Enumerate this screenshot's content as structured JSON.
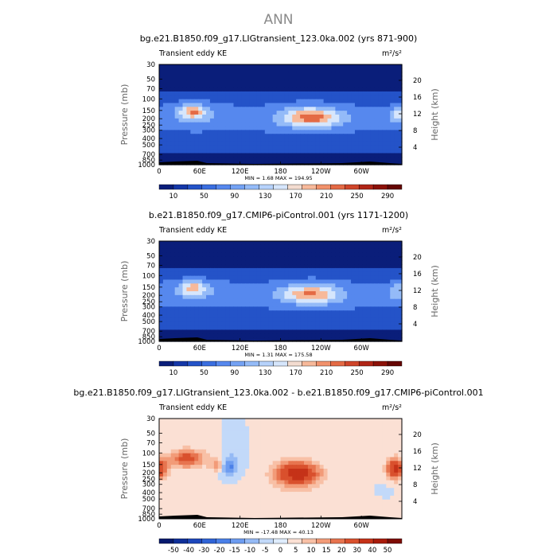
{
  "page_title": "ANN",
  "chart_data": [
    {
      "type": "heatmap",
      "title": "bg.e21.B1850.f09_g17.LIGtransient_123.0ka.002 (yrs 871-900)",
      "variable": "Transient eddy KE",
      "units": "m²/s²",
      "ylabel": "Pressure (mb)",
      "ylabel_right": "Height (km)",
      "y_scale": "log",
      "y_ticks": [
        "30",
        "50",
        "70",
        "100",
        "150",
        "200",
        "250",
        "300",
        "400",
        "500",
        "700",
        "850",
        "1000"
      ],
      "y_right_ticks": [
        "20",
        "16",
        "12",
        "8",
        "4"
      ],
      "x_ticks": [
        "0",
        "60E",
        "120E",
        "180",
        "120W",
        "60W"
      ],
      "stats_text": "MIN =    1.68   MAX = 194.95",
      "min": 1.68,
      "max": 194.95,
      "colorbar_ticks": [
        "10",
        "50",
        "90",
        "130",
        "170",
        "210",
        "250",
        "290"
      ],
      "colorbar_colors": [
        "#0a1e7a",
        "#1437a8",
        "#2453c8",
        "#3a6ee0",
        "#5688ee",
        "#74a2f4",
        "#94bbf8",
        "#b6d2fb",
        "#d6e6fc",
        "#f3dcd0",
        "#f7b99a",
        "#f1916b",
        "#e46a45",
        "#cf452a",
        "#b02516",
        "#8c1108",
        "#650603"
      ],
      "field": "eddyA"
    },
    {
      "type": "heatmap",
      "title": "b.e21.B1850.f09_g17.CMIP6-piControl.001 (yrs 1171-1200)",
      "variable": "Transient eddy KE",
      "units": "m²/s²",
      "ylabel": "Pressure (mb)",
      "ylabel_right": "Height (km)",
      "y_scale": "log",
      "y_ticks": [
        "30",
        "50",
        "70",
        "100",
        "150",
        "200",
        "250",
        "300",
        "400",
        "500",
        "700",
        "850",
        "1000"
      ],
      "y_right_ticks": [
        "20",
        "16",
        "12",
        "8",
        "4"
      ],
      "x_ticks": [
        "0",
        "60E",
        "120E",
        "180",
        "120W",
        "60W"
      ],
      "stats_text": "MIN =    1.31   MAX = 175.58",
      "min": 1.31,
      "max": 175.58,
      "colorbar_ticks": [
        "10",
        "50",
        "90",
        "130",
        "170",
        "210",
        "250",
        "290"
      ],
      "colorbar_colors": [
        "#0a1e7a",
        "#1437a8",
        "#2453c8",
        "#3a6ee0",
        "#5688ee",
        "#74a2f4",
        "#94bbf8",
        "#b6d2fb",
        "#d6e6fc",
        "#f3dcd0",
        "#f7b99a",
        "#f1916b",
        "#e46a45",
        "#cf452a",
        "#b02516",
        "#8c1108",
        "#650603"
      ],
      "field": "eddyB"
    },
    {
      "type": "heatmap",
      "title": "bg.e21.B1850.f09_g17.LIGtransient_123.0ka.002 - b.e21.B1850.f09_g17.CMIP6-piControl.001",
      "variable": "Transient eddy KE",
      "units": "m²/s²",
      "ylabel": "Pressure (mb)",
      "ylabel_right": "Height (km)",
      "y_scale": "log",
      "y_ticks": [
        "30",
        "50",
        "70",
        "100",
        "150",
        "200",
        "250",
        "300",
        "400",
        "500",
        "700",
        "850",
        "1000"
      ],
      "y_right_ticks": [
        "20",
        "16",
        "12",
        "8",
        "4"
      ],
      "x_ticks": [
        "0",
        "60E",
        "120E",
        "180",
        "120W",
        "60W"
      ],
      "stats_text": "MIN =  -17.48   MAX =  40.13",
      "min": -17.48,
      "max": 40.13,
      "colorbar_ticks": [
        "-50",
        "-40",
        "-30",
        "-20",
        "-15",
        "-10",
        "-5",
        "0",
        "5",
        "10",
        "15",
        "20",
        "30",
        "40",
        "50"
      ],
      "colorbar_colors": [
        "#061a6e",
        "#0f2f98",
        "#1d47bb",
        "#2f63d6",
        "#4a80e8",
        "#6d9cf0",
        "#95baf5",
        "#c2d9f9",
        "#deecfc",
        "#fbe0d4",
        "#f8c0a6",
        "#f29b78",
        "#e7744f",
        "#d9502d",
        "#c53218",
        "#a81b0a",
        "#7e0c04"
      ],
      "field": "diff"
    }
  ]
}
